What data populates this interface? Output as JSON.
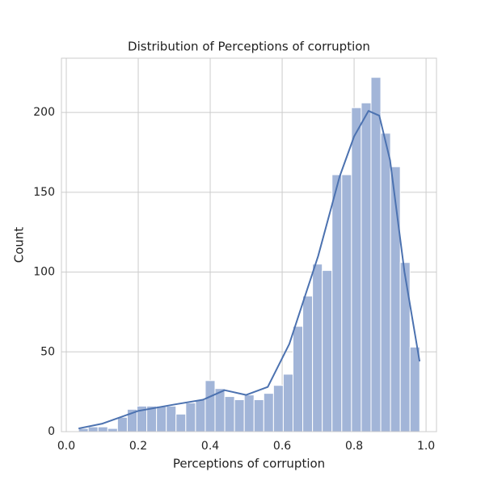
{
  "chart_data": {
    "type": "histogram",
    "title": "Distribution of Perceptions of corruption",
    "x_label": "Perceptions of corruption",
    "y_label": "Count",
    "bins": [
      0.034,
      0.0611,
      0.0882,
      0.1153,
      0.1424,
      0.1695,
      0.1966,
      0.2237,
      0.2508,
      0.2779,
      0.305,
      0.3321,
      0.3592,
      0.3863,
      0.4134,
      0.4405,
      0.4676,
      0.4947,
      0.5218,
      0.5489,
      0.576,
      0.6031,
      0.6302,
      0.6573,
      0.6844,
      0.7115,
      0.7386,
      0.7657,
      0.7928,
      0.8199,
      0.847,
      0.8741,
      0.9012,
      0.9283,
      0.9554,
      0.9825
    ],
    "values": [
      2,
      3,
      3,
      2,
      9,
      14,
      16,
      16,
      16,
      16,
      11,
      18,
      20,
      32,
      27,
      22,
      20,
      23,
      20,
      24,
      29,
      36,
      66,
      85,
      105,
      101,
      161,
      161,
      203,
      206,
      222,
      187,
      166,
      106,
      53
    ],
    "color": "#a2b5d8",
    "kde": {
      "color": "#4c72b0",
      "x": [
        0.034,
        0.1,
        0.2,
        0.3,
        0.38,
        0.44,
        0.5,
        0.56,
        0.62,
        0.7,
        0.76,
        0.8,
        0.84,
        0.87,
        0.9,
        0.94,
        0.982
      ],
      "values": [
        2,
        5,
        13,
        17,
        20,
        26,
        23,
        28,
        55,
        110,
        160,
        185,
        201,
        198,
        170,
        100,
        44
      ]
    },
    "xlim": [
      -0.0135,
      1.029
    ],
    "ylim": [
      0,
      234
    ],
    "xticks": [
      {
        "value": 0,
        "label": "0.0"
      },
      0.2,
      0.4,
      0.6,
      0.8,
      {
        "value": 1,
        "label": "1.0"
      }
    ],
    "yticks": [
      0,
      50,
      100,
      150,
      200
    ],
    "grid": true
  }
}
